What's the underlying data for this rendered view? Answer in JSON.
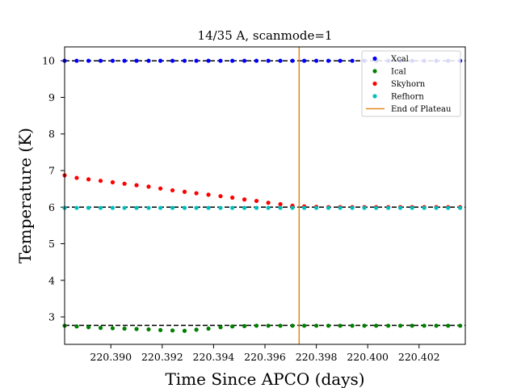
{
  "chart_data": {
    "type": "scatter",
    "title": "14/35 A, scanmode=1",
    "xlabel": "Time Since APCO (days)",
    "ylabel": "Temperature (K)",
    "xlim": [
      220.3882,
      220.4038
    ],
    "ylim": [
      2.25,
      10.38
    ],
    "xticks": [
      220.39,
      220.392,
      220.394,
      220.396,
      220.398,
      220.4,
      220.402
    ],
    "xtick_labels": [
      "220.390",
      "220.392",
      "220.394",
      "220.396",
      "220.398",
      "220.400",
      "220.402"
    ],
    "yticks": [
      3,
      4,
      5,
      6,
      7,
      8,
      9,
      10
    ],
    "ytick_labels": [
      "3",
      "4",
      "5",
      "6",
      "7",
      "8",
      "9",
      "10"
    ],
    "grid": false,
    "legend_position": "top-right",
    "x": [
      220.3882,
      220.38867,
      220.38913,
      220.3896,
      220.39007,
      220.39053,
      220.391,
      220.39147,
      220.39193,
      220.3924,
      220.39287,
      220.39333,
      220.3938,
      220.39427,
      220.39473,
      220.3952,
      220.39567,
      220.39613,
      220.3966,
      220.39707,
      220.39753,
      220.398,
      220.39847,
      220.39893,
      220.3994,
      220.39987,
      220.40033,
      220.4008,
      220.40127,
      220.40173,
      220.4022,
      220.40267,
      220.40313,
      220.4036
    ],
    "series": [
      {
        "name": "Xcal",
        "color": "#0000ff",
        "values": [
          10.0,
          10.0,
          10.0,
          10.0,
          10.0,
          10.0,
          10.0,
          10.0,
          10.0,
          10.0,
          10.0,
          10.0,
          10.0,
          10.0,
          10.0,
          10.0,
          10.0,
          10.0,
          10.0,
          10.0,
          10.0,
          10.0,
          10.0,
          10.0,
          10.0,
          10.0,
          10.0,
          10.0,
          10.0,
          10.0,
          10.0,
          10.0,
          10.0,
          10.0
        ]
      },
      {
        "name": "Ical",
        "color": "#008000",
        "values": [
          2.76,
          2.74,
          2.72,
          2.7,
          2.69,
          2.68,
          2.67,
          2.66,
          2.64,
          2.63,
          2.62,
          2.65,
          2.68,
          2.72,
          2.74,
          2.75,
          2.76,
          2.76,
          2.76,
          2.76,
          2.76,
          2.76,
          2.76,
          2.76,
          2.76,
          2.76,
          2.76,
          2.76,
          2.76,
          2.76,
          2.76,
          2.76,
          2.76,
          2.76
        ]
      },
      {
        "name": "Skyhorn",
        "color": "#ff0000",
        "values": [
          6.87,
          6.8,
          6.76,
          6.72,
          6.68,
          6.64,
          6.6,
          6.56,
          6.51,
          6.46,
          6.42,
          6.38,
          6.34,
          6.3,
          6.26,
          6.21,
          6.17,
          6.12,
          6.08,
          6.04,
          6.02,
          6.01,
          6.0,
          6.0,
          6.0,
          6.0,
          6.0,
          6.0,
          6.0,
          6.0,
          6.0,
          6.0,
          6.0,
          6.0
        ]
      },
      {
        "name": "Refhorn",
        "color": "#00bfbf",
        "values": [
          5.98,
          5.98,
          5.98,
          5.98,
          5.98,
          5.98,
          5.98,
          5.98,
          5.98,
          5.98,
          5.98,
          5.98,
          5.98,
          5.98,
          5.98,
          5.98,
          5.98,
          5.98,
          5.98,
          5.98,
          5.98,
          5.98,
          5.98,
          5.98,
          5.98,
          5.98,
          5.98,
          5.98,
          5.98,
          5.98,
          5.98,
          5.98,
          5.98,
          5.98
        ]
      }
    ],
    "hlines": [
      {
        "y": 10.0,
        "color": "#000000",
        "style": "dashed"
      },
      {
        "y": 6.0,
        "color": "#000000",
        "style": "dashed"
      },
      {
        "y": 2.77,
        "color": "#000000",
        "style": "dashed"
      }
    ],
    "vline": {
      "name": "End of Plateau",
      "x": 220.39733,
      "color": "#e08a1e"
    }
  }
}
